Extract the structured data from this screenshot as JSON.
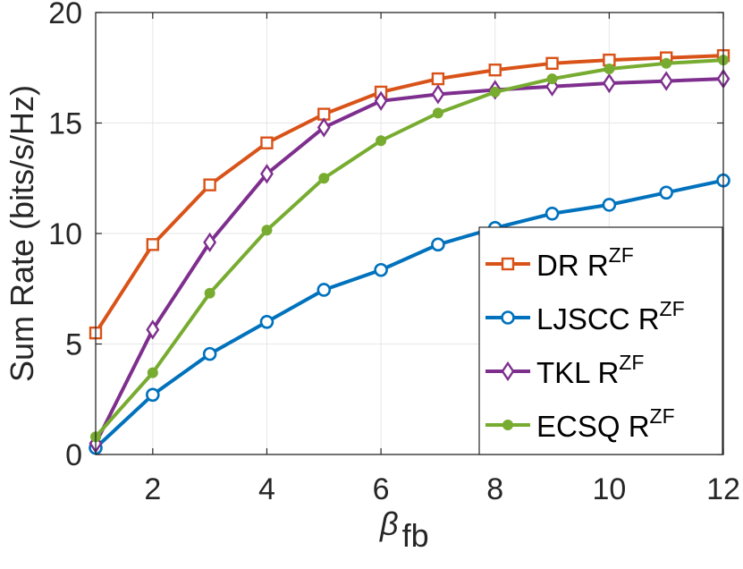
{
  "chart_data": {
    "type": "line",
    "xlabel": "β",
    "xlabel_subscript": "fb",
    "ylabel": "Sum Rate (bits/s/Hz)",
    "xlim": [
      1,
      12
    ],
    "ylim": [
      0,
      20
    ],
    "xticks": [
      2,
      4,
      6,
      8,
      10,
      12
    ],
    "yticks": [
      0,
      5,
      10,
      15,
      20
    ],
    "grid": true,
    "legend_position": "bottom-right",
    "x": [
      1,
      2,
      3,
      4,
      5,
      6,
      7,
      8,
      9,
      10,
      11,
      12
    ],
    "series": [
      {
        "name": "DR R",
        "sup": "ZF",
        "color": "#D95319",
        "marker": "square",
        "values": [
          5.5,
          9.5,
          12.2,
          14.1,
          15.4,
          16.4,
          17.0,
          17.4,
          17.7,
          17.85,
          17.95,
          18.05
        ]
      },
      {
        "name": "LJSCC R",
        "sup": "ZF",
        "color": "#0072BD",
        "marker": "circle",
        "values": [
          0.3,
          2.7,
          4.55,
          6.0,
          7.45,
          8.35,
          9.5,
          10.25,
          10.9,
          11.3,
          11.85,
          12.4
        ]
      },
      {
        "name": "TKL R",
        "sup": "ZF",
        "color": "#7E2F8E",
        "marker": "diamond",
        "values": [
          0.5,
          5.65,
          9.6,
          12.7,
          14.8,
          16.0,
          16.3,
          16.5,
          16.65,
          16.8,
          16.9,
          17.0
        ]
      },
      {
        "name": "ECSQ R",
        "sup": "ZF",
        "color": "#77AC30",
        "marker": "dot",
        "values": [
          0.8,
          3.7,
          7.3,
          10.15,
          12.5,
          14.2,
          15.45,
          16.4,
          17.0,
          17.45,
          17.7,
          17.85
        ]
      }
    ]
  }
}
